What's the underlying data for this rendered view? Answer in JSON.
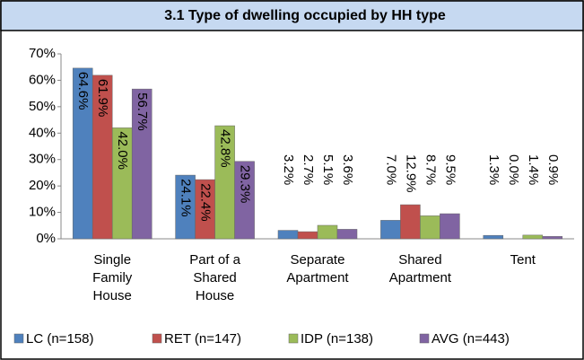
{
  "chart_data": {
    "type": "bar",
    "title": "3.1 Type of dwelling occupied by HH type",
    "categories": [
      "Single Family House",
      "Part of a Shared House",
      "Separate Apartment",
      "Shared Apartment",
      "Tent"
    ],
    "series": [
      {
        "name": "LC (n=158)",
        "color": "#4f81bd",
        "values": [
          64.6,
          24.1,
          3.2,
          7.0,
          1.3
        ],
        "value_labels": [
          "64.6%",
          "24.1%",
          "3.2%",
          "7.0%",
          "1.3%"
        ]
      },
      {
        "name": "RET (n=147)",
        "color": "#c0504d",
        "values": [
          61.9,
          22.4,
          2.7,
          12.9,
          0.0
        ],
        "value_labels": [
          "61.9%",
          "22.4%",
          "2.7%",
          "12.9%",
          "0.0%"
        ]
      },
      {
        "name": "IDP (n=138)",
        "color": "#9bbb59",
        "values": [
          42.0,
          42.8,
          5.1,
          8.7,
          1.4
        ],
        "value_labels": [
          "42.0%",
          "42.8%",
          "5.1%",
          "8.7%",
          "1.4%"
        ]
      },
      {
        "name": "AVG (n=443)",
        "color": "#8064a2",
        "values": [
          56.7,
          29.3,
          3.6,
          9.5,
          0.9
        ],
        "value_labels": [
          "56.7%",
          "29.3%",
          "3.6%",
          "9.5%",
          "0.9%"
        ]
      }
    ],
    "ylim": [
      0,
      70
    ],
    "yticks": [
      {
        "value": 0,
        "label": "0%"
      },
      {
        "value": 10,
        "label": "10%"
      },
      {
        "value": 20,
        "label": "20%"
      },
      {
        "value": 30,
        "label": "30%"
      },
      {
        "value": 40,
        "label": "40%"
      },
      {
        "value": 50,
        "label": "50%"
      },
      {
        "value": 60,
        "label": "60%"
      },
      {
        "value": 70,
        "label": "70%"
      }
    ],
    "grid": false,
    "legend": "bottom"
  }
}
